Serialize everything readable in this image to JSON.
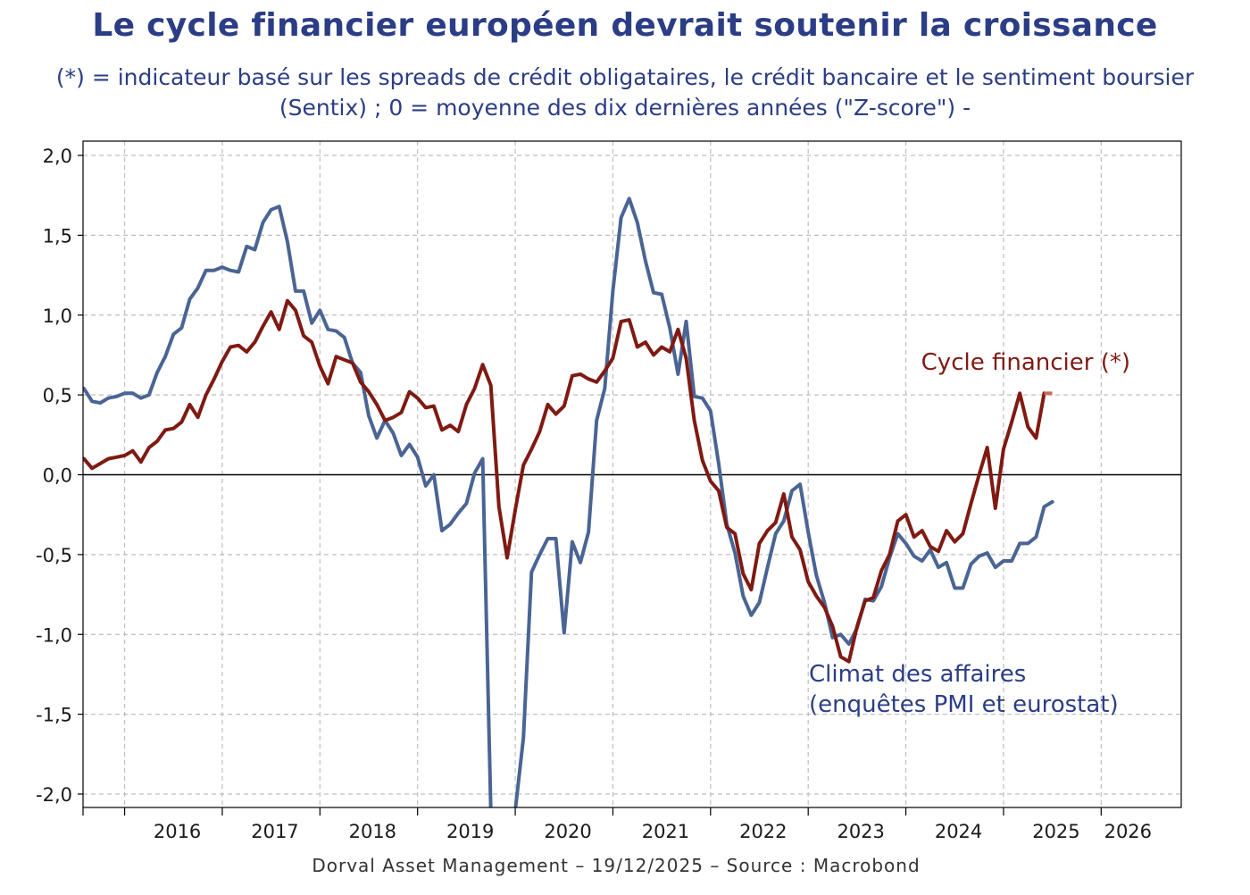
{
  "title": "Le cycle financier européen devrait soutenir la croissance",
  "subtitle": "(*) = indicateur basé sur les spreads de crédit obligataires, le crédit bancaire et le sentiment boursier (Sentix) ; 0 = moyenne des dix dernières années (\"Z-score\") -",
  "footer": "Dorval Asset Management – 19/12/2025 –   Source : Macrobond",
  "colors": {
    "financial_cycle": "#7f1a12",
    "business_climate": "#4a6494",
    "title": "#2b3d85",
    "grid": "#bfbfbf"
  },
  "chart_data": {
    "type": "line",
    "xlabel": "",
    "ylabel": "",
    "x_start": "2015-08",
    "x_step": "month",
    "xlim": [
      "2015-08",
      "2026-07"
    ],
    "ylim": [
      -2.0,
      2.0
    ],
    "y_ticks": [
      "2,0",
      "1,5",
      "1,0",
      "0,5",
      "0,0",
      "-0,5",
      "-1,0",
      "-1,5",
      "-2,0"
    ],
    "y_tick_values": [
      2.0,
      1.5,
      1.0,
      0.5,
      0.0,
      -0.5,
      -1.0,
      -1.5,
      -2.0
    ],
    "x_ticks": [
      "2016",
      "2017",
      "2018",
      "2019",
      "2020",
      "2021",
      "2022",
      "2023",
      "2024",
      "2025",
      "2026"
    ],
    "grid": true,
    "zero_line": true,
    "series": [
      {
        "name": "Cycle financier (*)",
        "annotation": "Cycle financier (*)",
        "color": "#7f1a12",
        "values": [
          0.1,
          0.04,
          0.07,
          0.1,
          0.11,
          0.12,
          0.15,
          0.08,
          0.17,
          0.21,
          0.28,
          0.29,
          0.33,
          0.44,
          0.36,
          0.5,
          0.6,
          0.71,
          0.8,
          0.81,
          0.77,
          0.83,
          0.93,
          1.02,
          0.91,
          1.09,
          1.03,
          0.87,
          0.83,
          0.68,
          0.57,
          0.74,
          0.72,
          0.7,
          0.58,
          0.52,
          0.44,
          0.34,
          0.36,
          0.39,
          0.52,
          0.48,
          0.42,
          0.43,
          0.28,
          0.31,
          0.27,
          0.44,
          0.54,
          0.69,
          0.56,
          -0.2,
          -0.52,
          -0.22,
          0.06,
          0.16,
          0.27,
          0.44,
          0.38,
          0.43,
          0.62,
          0.63,
          0.6,
          0.58,
          0.65,
          0.73,
          0.96,
          0.97,
          0.8,
          0.83,
          0.75,
          0.8,
          0.77,
          0.91,
          0.73,
          0.34,
          0.09,
          -0.04,
          -0.1,
          -0.33,
          -0.37,
          -0.62,
          -0.72,
          -0.43,
          -0.35,
          -0.3,
          -0.12,
          -0.39,
          -0.47,
          -0.67,
          -0.76,
          -0.83,
          -0.95,
          -1.14,
          -1.17,
          -0.95,
          -0.79,
          -0.77,
          -0.6,
          -0.5,
          -0.29,
          -0.25,
          -0.39,
          -0.35,
          -0.45,
          -0.48,
          -0.35,
          -0.42,
          -0.37,
          -0.18,
          0.0,
          0.17,
          -0.21,
          0.16,
          0.33,
          0.51,
          0.3,
          0.23,
          0.51
        ]
      },
      {
        "name": "Climat des affaires (enquêtes PMI et eurostat)",
        "annotation_line1": "Climat des affaires",
        "annotation_line2": "(enquêtes PMI et eurostat)",
        "color": "#4a6494",
        "values": [
          0.54,
          0.46,
          0.45,
          0.48,
          0.49,
          0.51,
          0.51,
          0.48,
          0.5,
          0.64,
          0.74,
          0.88,
          0.92,
          1.1,
          1.17,
          1.28,
          1.28,
          1.3,
          1.28,
          1.27,
          1.43,
          1.41,
          1.58,
          1.66,
          1.68,
          1.46,
          1.15,
          1.15,
          0.95,
          1.03,
          0.91,
          0.9,
          0.86,
          0.7,
          0.64,
          0.37,
          0.23,
          0.34,
          0.26,
          0.12,
          0.19,
          0.11,
          -0.07,
          0.0,
          -0.35,
          -0.31,
          -0.24,
          -0.18,
          0.01,
          0.1,
          -2.1,
          -2.1,
          -2.1,
          -2.1,
          -1.65,
          -0.61,
          -0.5,
          -0.4,
          -0.4,
          -0.99,
          -0.42,
          -0.55,
          -0.36,
          0.34,
          0.54,
          1.15,
          1.61,
          1.73,
          1.58,
          1.34,
          1.14,
          1.13,
          0.92,
          0.63,
          0.96,
          0.49,
          0.48,
          0.4,
          0.07,
          -0.31,
          -0.49,
          -0.76,
          -0.88,
          -0.8,
          -0.58,
          -0.37,
          -0.29,
          -0.1,
          -0.06,
          -0.36,
          -0.63,
          -0.8,
          -1.02,
          -1.0,
          -1.06,
          -0.96,
          -0.78,
          -0.79,
          -0.7,
          -0.52,
          -0.37,
          -0.43,
          -0.51,
          -0.54,
          -0.47,
          -0.58,
          -0.55,
          -0.71,
          -0.71,
          -0.56,
          -0.51,
          -0.49,
          -0.58,
          -0.54,
          -0.54,
          -0.43,
          -0.43,
          -0.39,
          -0.2,
          -0.17
        ]
      }
    ]
  }
}
